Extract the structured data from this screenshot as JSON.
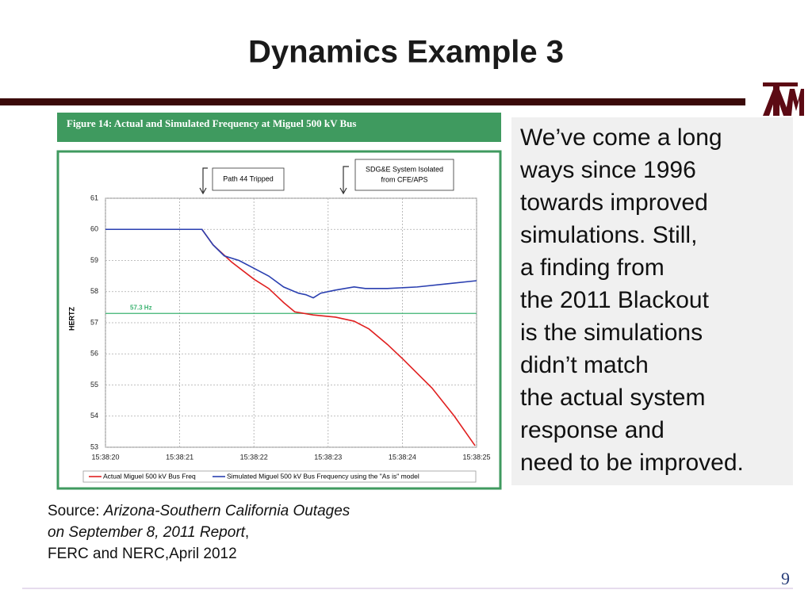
{
  "slide_title": "Dynamics Example 3",
  "figure_caption": "Figure 14:  Actual and Simulated Frequency at Miguel 500 kV Bus",
  "chart_data": {
    "type": "line",
    "y_label": "HERTZ",
    "xlim": [
      20,
      25
    ],
    "xticks": [
      {
        "value": 20,
        "label": "15:38:20"
      },
      {
        "value": 21,
        "label": "15:38:21"
      },
      {
        "value": 22,
        "label": "15:38:22"
      },
      {
        "value": 23,
        "label": "15:38:23"
      },
      {
        "value": 24,
        "label": "15:38:24"
      },
      {
        "value": 25,
        "label": "15:38:25"
      }
    ],
    "ylim": [
      53,
      61
    ],
    "yticks": [
      53,
      54,
      55,
      56,
      57,
      58,
      59,
      60,
      61
    ],
    "grid": true,
    "reference_line": {
      "value": 57.3,
      "label": "57.3 Hz",
      "color": "#3cb371"
    },
    "annotations": [
      "Path 44 Tripped",
      "SDG&E System Isolated",
      "from CFE/APS"
    ],
    "series": [
      {
        "name": "Actual Miguel 500 kV Bus Freq",
        "color": "#e02020",
        "x": [
          20,
          21.3,
          21.45,
          21.7,
          22.0,
          22.2,
          22.4,
          22.55,
          22.8,
          23.1,
          23.35,
          23.55,
          23.8,
          24.0,
          24.4,
          24.7,
          24.98
        ],
        "values": [
          60,
          60,
          59.5,
          58.95,
          58.4,
          58.1,
          57.65,
          57.35,
          57.25,
          57.18,
          57.05,
          56.8,
          56.3,
          55.85,
          54.9,
          54.0,
          53.05
        ]
      },
      {
        "name": "Simulated Miguel 500 kV Bus Frequency using the \"As is\" model",
        "color": "#2a3fb0",
        "x": [
          20,
          21.3,
          21.45,
          21.6,
          21.8,
          22.0,
          22.2,
          22.4,
          22.6,
          22.7,
          22.8,
          22.9,
          23.1,
          23.35,
          23.5,
          23.8,
          24.2,
          24.6,
          25.0
        ],
        "values": [
          60,
          60,
          59.5,
          59.15,
          59.0,
          58.75,
          58.5,
          58.15,
          57.95,
          57.9,
          57.8,
          57.95,
          58.05,
          58.15,
          58.1,
          58.1,
          58.15,
          58.25,
          58.35
        ]
      }
    ]
  },
  "body_lines": [
    "We’ve come a long",
    "ways since 1996",
    "towards improved",
    "simulations. Still,",
    "a finding from",
    "the 2011 Blackout",
    "is the simulations",
    "didn’t match",
    "the actual system",
    "response and",
    "need to be improved."
  ],
  "source": {
    "prefix": "Source: ",
    "report_line1": "Arizona-Southern California Outages",
    "report_line2": "on September 8, 2011 Report",
    "separator": ",",
    "authors": "FERC and NERC,April 2012"
  },
  "page_number": "9"
}
